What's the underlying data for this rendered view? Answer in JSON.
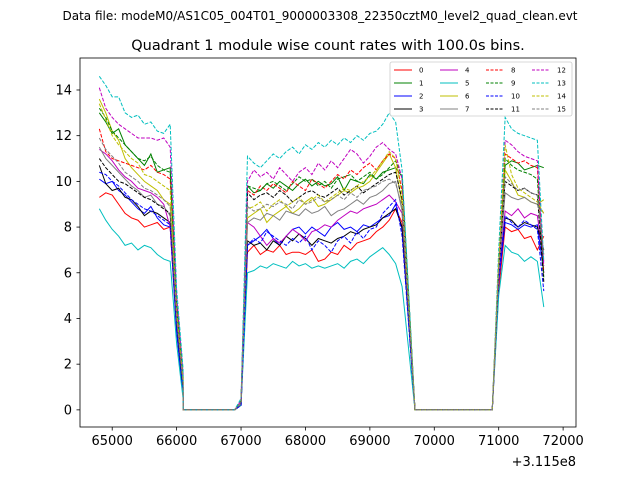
{
  "figure": {
    "suptitle": "Data file: modeM0/AS1C05_004T01_9000003308_22350cztM0_level2_quad_clean.evt"
  },
  "chart_data": {
    "type": "line",
    "title": "Quadrant 1 module wise count rates with 100.0s bins.",
    "xlabel": "",
    "ylabel": "",
    "x_offset_label": "+3.115e8",
    "x_offset": 311500000,
    "xlim": [
      64500,
      72200
    ],
    "ylim": [
      -0.75,
      15.4
    ],
    "xticks": [
      65000,
      66000,
      67000,
      68000,
      69000,
      70000,
      71000,
      72000
    ],
    "xtick_labels": [
      "65000",
      "66000",
      "67000",
      "68000",
      "69000",
      "70000",
      "71000",
      "72000"
    ],
    "yticks": [
      0,
      2,
      4,
      6,
      8,
      10,
      12,
      14
    ],
    "ytick_labels": [
      "0",
      "2",
      "4",
      "6",
      "8",
      "10",
      "12",
      "14"
    ],
    "grid": false,
    "legend": {
      "placement": "top-right",
      "columns": 4
    },
    "segments": [
      {
        "start": 64800,
        "step": 100,
        "count": 14,
        "drop": [
          66000
        ]
      },
      {
        "start": 67000,
        "step": 100,
        "count": 26
      },
      {
        "start": 71000,
        "step": 100,
        "count": 8
      }
    ],
    "gaps": [
      {
        "from": 66100,
        "to": 66900,
        "value": 0
      },
      {
        "from": 69700,
        "to": 70900,
        "value": 0
      }
    ],
    "series": [
      {
        "name": "0",
        "color": "#ff0000",
        "dash": "solid",
        "seg": [
          [
            9.3,
            9.5,
            9.4,
            9.0,
            8.6,
            8.4,
            8.3,
            8.0,
            8.1,
            8.2,
            7.9,
            8.0,
            3.5,
            0.6
          ],
          [
            0.2,
            6.9,
            7.2,
            6.8,
            7.0,
            6.9,
            7.2,
            6.8,
            6.9,
            6.9,
            6.8,
            7.0,
            6.5,
            6.6,
            6.9,
            6.8,
            7.2,
            7.0,
            7.3,
            7.4,
            7.5,
            7.8,
            8.0,
            8.3,
            8.8,
            8.2
          ],
          [
            5.2,
            8.0,
            7.8,
            7.9,
            7.5,
            7.6,
            7.0,
            7.6
          ]
        ]
      },
      {
        "name": "1",
        "color": "#008000",
        "dash": "solid",
        "seg": [
          [
            13.0,
            12.6,
            12.1,
            12.3,
            11.6,
            11.3,
            11.0,
            10.7,
            11.2,
            10.4,
            10.5,
            10.6,
            4.5,
            1.5
          ],
          [
            0.3,
            9.8,
            9.5,
            9.6,
            9.9,
            9.7,
            10.0,
            9.8,
            9.6,
            9.9,
            10.1,
            9.8,
            10.0,
            9.8,
            9.9,
            10.2,
            9.6,
            10.1,
            10.0,
            9.9,
            10.3,
            10.1,
            10.4,
            10.5,
            10.6,
            10.2
          ],
          [
            6.1,
            10.7,
            10.9,
            10.8,
            10.5,
            10.6,
            10.7,
            10.6
          ]
        ]
      },
      {
        "name": "2",
        "color": "#0000ff",
        "dash": "solid",
        "seg": [
          [
            10.1,
            9.9,
            10.0,
            9.6,
            9.4,
            9.1,
            8.8,
            8.6,
            8.9,
            8.4,
            8.1,
            8.0,
            3.4,
            0.7
          ],
          [
            0.2,
            7.2,
            7.4,
            7.6,
            7.9,
            7.5,
            7.2,
            7.6,
            7.9,
            8.0,
            7.7,
            8.0,
            7.8,
            7.6,
            8.0,
            8.2,
            7.9,
            8.0,
            7.8,
            8.1,
            8.0,
            8.2,
            8.4,
            8.5,
            9.0,
            7.9
          ],
          [
            5.6,
            8.2,
            8.1,
            7.9,
            8.1,
            8.0,
            8.1,
            6.0
          ]
        ]
      },
      {
        "name": "3",
        "color": "#000000",
        "dash": "solid",
        "seg": [
          [
            10.7,
            9.9,
            9.6,
            9.7,
            9.3,
            9.2,
            8.9,
            8.5,
            8.7,
            8.6,
            8.4,
            8.2,
            3.8,
            0.9
          ],
          [
            0.2,
            7.4,
            7.2,
            7.3,
            7.0,
            7.4,
            7.2,
            7.6,
            7.4,
            7.7,
            7.5,
            7.2,
            7.5,
            7.4,
            7.3,
            7.5,
            7.6,
            7.8,
            7.7,
            7.9,
            8.0,
            8.1,
            8.4,
            8.6,
            8.8,
            8.0
          ],
          [
            6.0,
            8.4,
            8.3,
            8.0,
            8.2,
            8.1,
            8.0,
            7.0
          ]
        ]
      },
      {
        "name": "4",
        "color": "#bf00bf",
        "dash": "solid",
        "seg": [
          [
            11.4,
            11.2,
            10.9,
            10.5,
            10.2,
            10.0,
            9.7,
            9.6,
            9.5,
            9.3,
            9.0,
            8.0,
            3.8,
            1.2
          ],
          [
            0.3,
            8.2,
            8.0,
            7.6,
            7.2,
            7.5,
            7.3,
            7.6,
            7.9,
            7.7,
            7.4,
            7.8,
            7.9,
            8.1,
            8.0,
            8.3,
            8.5,
            8.7,
            8.6,
            8.8,
            8.9,
            9.0,
            9.2,
            9.4,
            9.1,
            8.6
          ],
          [
            5.8,
            8.7,
            8.5,
            8.8,
            8.4,
            8.6,
            8.5,
            6.5
          ]
        ]
      },
      {
        "name": "5",
        "color": "#00bfbf",
        "dash": "solid",
        "seg": [
          [
            8.8,
            8.3,
            7.9,
            7.6,
            7.2,
            7.3,
            7.0,
            7.2,
            7.1,
            6.8,
            6.6,
            6.5,
            2.9,
            0.5
          ],
          [
            0.2,
            6.0,
            6.1,
            6.3,
            6.2,
            6.4,
            6.3,
            6.2,
            6.5,
            6.3,
            6.4,
            6.2,
            6.3,
            6.2,
            6.3,
            6.4,
            6.2,
            6.5,
            6.6,
            6.4,
            6.7,
            6.9,
            7.1,
            6.8,
            6.4,
            5.4
          ],
          [
            5.0,
            7.2,
            6.9,
            6.8,
            6.5,
            6.7,
            6.5,
            4.5
          ]
        ]
      },
      {
        "name": "6",
        "color": "#bfbf00",
        "dash": "solid",
        "seg": [
          [
            13.6,
            13.0,
            12.2,
            11.8,
            11.0,
            10.6,
            10.3,
            10.0,
            9.8,
            9.6,
            9.2,
            9.0,
            4.0,
            1.2
          ],
          [
            0.3,
            8.4,
            8.6,
            8.8,
            8.2,
            8.5,
            8.7,
            8.9,
            8.6,
            8.8,
            9.1,
            9.3,
            8.9,
            9.0,
            9.2,
            9.4,
            9.6,
            9.5,
            9.7,
            9.8,
            10.0,
            10.4,
            10.8,
            11.2,
            10.6,
            9.0
          ],
          [
            6.5,
            10.5,
            10.0,
            9.4,
            9.3,
            9.1,
            9.0,
            9.2
          ]
        ]
      },
      {
        "name": "7",
        "color": "#808080",
        "dash": "solid",
        "seg": [
          [
            11.5,
            11.0,
            10.7,
            10.4,
            10.1,
            9.8,
            9.6,
            9.3,
            9.4,
            9.0,
            8.9,
            8.5,
            3.9,
            1.0
          ],
          [
            0.3,
            8.2,
            8.4,
            8.3,
            8.6,
            8.5,
            8.3,
            8.7,
            8.6,
            8.5,
            8.8,
            8.6,
            8.7,
            8.9,
            8.5,
            8.7,
            8.8,
            9.0,
            9.2,
            9.0,
            9.3,
            9.4,
            9.6,
            9.9,
            10.0,
            8.7
          ],
          [
            6.0,
            9.5,
            9.3,
            9.2,
            9.3,
            9.1,
            9.0,
            8.6
          ]
        ]
      },
      {
        "name": "8",
        "color": "#ff0000",
        "dash": "dashed",
        "seg": [
          [
            12.3,
            11.3,
            11.0,
            10.9,
            10.8,
            10.7,
            10.6,
            10.5,
            10.7,
            10.4,
            10.3,
            10.1,
            4.5,
            1.4
          ],
          [
            0.3,
            9.6,
            9.4,
            9.8,
            9.6,
            9.9,
            9.7,
            9.5,
            10.0,
            9.8,
            9.6,
            10.1,
            9.9,
            9.7,
            10.0,
            10.3,
            10.1,
            10.5,
            10.3,
            10.6,
            10.8,
            10.5,
            10.9,
            11.2,
            11.0,
            9.6
          ],
          [
            6.3,
            11.2,
            11.0,
            10.8,
            10.9,
            10.7,
            10.6,
            6.0
          ]
        ]
      },
      {
        "name": "9",
        "color": "#008000",
        "dash": "dashed",
        "seg": [
          [
            13.2,
            12.8,
            12.2,
            11.9,
            11.6,
            11.3,
            11.0,
            10.9,
            11.1,
            10.7,
            10.5,
            10.4,
            4.6,
            1.5
          ],
          [
            0.4,
            9.8,
            9.7,
            9.6,
            9.9,
            10.0,
            9.8,
            9.6,
            9.9,
            10.2,
            10.0,
            10.1,
            9.8,
            10.0,
            9.7,
            10.1,
            10.2,
            10.3,
            10.0,
            10.2,
            10.4,
            10.1,
            10.3,
            10.6,
            10.9,
            10.2
          ],
          [
            6.2,
            11.0,
            10.7,
            10.5,
            10.4,
            10.3,
            10.1,
            5.8
          ]
        ]
      },
      {
        "name": "10",
        "color": "#0000ff",
        "dash": "dashed",
        "seg": [
          [
            10.4,
            10.3,
            10.0,
            9.8,
            9.5,
            9.2,
            9.0,
            8.8,
            8.7,
            8.5,
            8.3,
            8.1,
            3.6,
            0.8
          ],
          [
            0.2,
            7.2,
            7.5,
            7.3,
            7.8,
            7.6,
            7.4,
            7.2,
            7.5,
            7.3,
            7.6,
            7.0,
            7.4,
            7.2,
            6.9,
            7.4,
            7.6,
            7.3,
            7.8,
            7.5,
            7.9,
            8.0,
            8.6,
            8.9,
            9.2,
            7.6
          ],
          [
            5.8,
            8.5,
            8.2,
            8.0,
            8.3,
            8.1,
            7.9,
            5.2
          ]
        ]
      },
      {
        "name": "11",
        "color": "#000000",
        "dash": "dashed",
        "seg": [
          [
            11.0,
            10.6,
            10.3,
            10.0,
            9.9,
            9.7,
            9.5,
            9.3,
            9.2,
            9.0,
            8.8,
            8.6,
            3.9,
            1.0
          ],
          [
            0.3,
            9.5,
            9.2,
            9.4,
            9.5,
            9.3,
            9.6,
            9.4,
            9.1,
            9.3,
            9.5,
            9.6,
            9.4,
            9.3,
            9.5,
            9.7,
            9.4,
            9.6,
            9.8,
            9.5,
            9.7,
            9.9,
            10.1,
            10.3,
            10.4,
            9.2
          ],
          [
            6.1,
            10.0,
            9.8,
            9.6,
            9.7,
            9.5,
            9.4,
            5.6
          ]
        ]
      },
      {
        "name": "12",
        "color": "#bf00bf",
        "dash": "dashed",
        "seg": [
          [
            14.1,
            13.2,
            12.8,
            12.5,
            12.3,
            12.1,
            11.9,
            11.9,
            11.9,
            11.8,
            11.9,
            11.5,
            5.0,
            1.6
          ],
          [
            0.4,
            10.0,
            10.5,
            10.2,
            10.4,
            10.1,
            10.6,
            10.3,
            10.0,
            10.4,
            10.6,
            10.3,
            10.8,
            10.5,
            10.9,
            10.6,
            11.0,
            11.4,
            11.2,
            10.8,
            11.1,
            11.5,
            11.7,
            11.4,
            11.2,
            10.1
          ],
          [
            6.6,
            11.8,
            11.6,
            11.3,
            11.1,
            11.0,
            10.9,
            6.3
          ]
        ]
      },
      {
        "name": "13",
        "color": "#00bfbf",
        "dash": "dashed",
        "seg": [
          [
            14.6,
            14.2,
            13.7,
            13.7,
            13.0,
            12.8,
            12.9,
            12.5,
            12.6,
            12.2,
            12.1,
            12.5,
            5.3,
            1.8
          ],
          [
            0.5,
            11.1,
            10.8,
            10.6,
            10.9,
            11.2,
            11.0,
            11.3,
            11.5,
            11.2,
            11.6,
            11.4,
            11.7,
            11.5,
            11.8,
            11.6,
            11.9,
            11.7,
            12.0,
            11.8,
            12.1,
            12.2,
            12.5,
            13.0,
            12.6,
            10.5
          ],
          [
            7.0,
            12.8,
            12.3,
            12.1,
            12.0,
            11.9,
            11.8,
            6.5
          ]
        ]
      },
      {
        "name": "14",
        "color": "#bfbf00",
        "dash": "dashed",
        "seg": [
          [
            13.4,
            12.7,
            12.0,
            11.6,
            11.3,
            11.0,
            10.8,
            10.3,
            10.2,
            10.0,
            9.8,
            9.6,
            4.3,
            1.3
          ],
          [
            0.3,
            8.8,
            8.9,
            9.1,
            8.7,
            9.0,
            9.2,
            8.9,
            9.1,
            9.3,
            9.0,
            9.2,
            9.4,
            9.1,
            9.3,
            9.5,
            9.7,
            9.6,
            9.8,
            10.0,
            10.2,
            10.5,
            10.9,
            11.3,
            11.0,
            9.4
          ],
          [
            6.4,
            11.6,
            10.3,
            9.7,
            9.5,
            9.3,
            9.1,
            8.6
          ]
        ]
      },
      {
        "name": "15",
        "color": "#808080",
        "dash": "dashed",
        "seg": [
          [
            11.9,
            11.4,
            11.1,
            10.8,
            10.4,
            10.2,
            10.0,
            9.7,
            9.6,
            9.4,
            9.2,
            8.9,
            4.0,
            1.1
          ],
          [
            0.3,
            8.9,
            8.7,
            8.8,
            9.0,
            8.9,
            9.1,
            9.0,
            8.8,
            9.2,
            9.0,
            9.1,
            9.3,
            9.1,
            9.2,
            9.4,
            9.2,
            9.5,
            9.3,
            9.6,
            9.7,
            9.8,
            10.0,
            10.1,
            9.9,
            8.9
          ],
          [
            6.0,
            10.2,
            9.9,
            9.6,
            9.7,
            9.5,
            9.4,
            6.8
          ]
        ]
      }
    ]
  }
}
